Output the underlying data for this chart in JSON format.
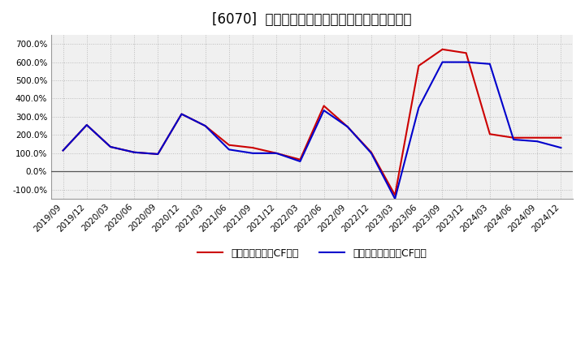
{
  "title": "[6070]  有利子負債キャッシュフロー比率の推移",
  "x_labels": [
    "2019/09",
    "2019/12",
    "2020/03",
    "2020/06",
    "2020/09",
    "2020/12",
    "2021/03",
    "2021/06",
    "2021/09",
    "2021/12",
    "2022/03",
    "2022/06",
    "2022/09",
    "2022/12",
    "2023/03",
    "2023/06",
    "2023/09",
    "2023/12",
    "2024/03",
    "2024/06",
    "2024/09",
    "2024/12"
  ],
  "red_values": [
    115,
    255,
    135,
    105,
    95,
    315,
    250,
    145,
    130,
    100,
    65,
    360,
    245,
    105,
    -130,
    580,
    670,
    650,
    205,
    185,
    185,
    185
  ],
  "blue_values": [
    115,
    255,
    135,
    105,
    95,
    315,
    250,
    120,
    100,
    100,
    55,
    335,
    245,
    100,
    -150,
    350,
    600,
    600,
    590,
    175,
    165,
    130
  ],
  "red_label": "有利子負債営業CF比率",
  "blue_label": "有利子負債フリーCF比率",
  "ylim": [
    -150,
    750
  ],
  "yticks": [
    -100,
    0,
    100,
    200,
    300,
    400,
    500,
    600,
    700
  ],
  "background_color": "#ffffff",
  "plot_bg_color": "#f0f0f0",
  "grid_color": "#bbbbbb",
  "red_color": "#cc0000",
  "blue_color": "#0000cc",
  "title_fontsize": 12,
  "legend_fontsize": 9,
  "tick_fontsize": 7.5
}
